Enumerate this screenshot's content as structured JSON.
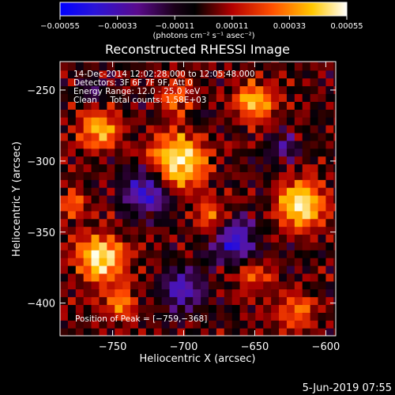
{
  "chart_data": {
    "type": "heatmap",
    "title": "Reconstructed RHESSI Image",
    "xlabel": "Heliocentric X (arcsec)",
    "ylabel": "Heliocentric Y (arcsec)",
    "xlim": [
      -787,
      -593
    ],
    "ylim": [
      -423,
      -230
    ],
    "x_ticks": [
      {
        "value": -750,
        "label": "−750"
      },
      {
        "value": -700,
        "label": "−700"
      },
      {
        "value": -650,
        "label": "−650"
      },
      {
        "value": -600,
        "label": "−600"
      }
    ],
    "y_ticks": [
      {
        "value": -250,
        "label": "−250"
      },
      {
        "value": -300,
        "label": "−300"
      },
      {
        "value": -350,
        "label": "−350"
      },
      {
        "value": -400,
        "label": "−400"
      }
    ],
    "colorbar": {
      "min": -0.00055,
      "max": 0.00055,
      "unit_label": "(photons cm⁻² s⁻¹ asec⁻²)",
      "ticks": [
        {
          "value": -0.00055,
          "label": "−0.00055"
        },
        {
          "value": -0.00033,
          "label": "−0.00033"
        },
        {
          "value": -0.00011,
          "label": "−0.00011"
        },
        {
          "value": 0.00011,
          "label": "0.00011"
        },
        {
          "value": 0.00033,
          "label": "0.00033"
        },
        {
          "value": 0.00055,
          "label": "0.00055"
        }
      ]
    },
    "annotations": [
      "14-Dec-2014 12:02:28.000 to 12:05:48.000",
      "Detectors: 3F 6F 7F 9F, Att 0",
      "Energy Range: 12.0 - 25.0 keV",
      "Clean     Total counts: 1.58E+03"
    ],
    "peak_label": "Position of Peak = [−759,−368]",
    "peak": [
      -759,
      -368
    ],
    "grid": false,
    "colors": [
      "#0000ff",
      "#5a0a8c",
      "#000000",
      "#b40000",
      "#ff5000",
      "#ffc800",
      "#ffffff"
    ]
  },
  "footer": {
    "timestamp": "5-Jun-2019 07:55"
  }
}
